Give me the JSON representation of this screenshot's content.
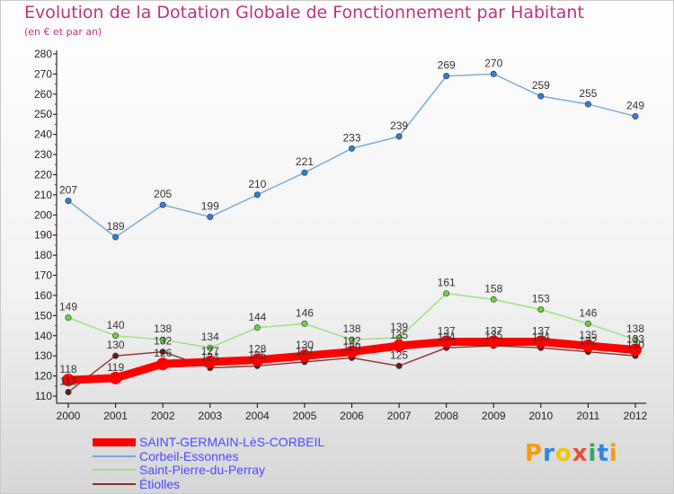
{
  "chart_data": {
    "type": "line",
    "title": "Evolution de la Dotation Globale de Fonctionnement par Habitant",
    "subtitle": "(en € et par an)",
    "x": [
      "2000",
      "2001",
      "2002",
      "2003",
      "2004",
      "2005",
      "2006",
      "2007",
      "2008",
      "2009",
      "2010",
      "2011",
      "2012"
    ],
    "ylim": [
      110,
      280
    ],
    "yticks": [
      110,
      120,
      130,
      140,
      150,
      160,
      170,
      180,
      190,
      200,
      210,
      220,
      230,
      240,
      250,
      260,
      270,
      280
    ],
    "grid": false,
    "legend_position": "bottom-left",
    "series": [
      {
        "name": "SAINT-GERMAIN-LèS-CORBEIL",
        "color": "#ff0000",
        "emphasis": true,
        "values": [
          118,
          119,
          126,
          127,
          128,
          130,
          132,
          135,
          137,
          137,
          137,
          135,
          133
        ],
        "labels": [
          "118",
          "119",
          "126",
          "127",
          "128",
          "130",
          "132",
          "135",
          "137",
          "137",
          "137",
          "135",
          "133"
        ]
      },
      {
        "name": "Corbeil-Essonnes",
        "color": "#6fa7da",
        "marker_color": "#2f7fd4",
        "values": [
          207,
          189,
          205,
          199,
          210,
          221,
          233,
          239,
          269,
          270,
          259,
          255,
          249
        ],
        "labels": [
          "207",
          "189",
          "205",
          "199",
          "210",
          "221",
          "233",
          "239",
          "269",
          "270",
          "259",
          "255",
          "249"
        ]
      },
      {
        "name": "Saint-Pierre-du-Perray",
        "color": "#99e07a",
        "marker_color": "#6ad33c",
        "values": [
          149,
          140,
          138,
          134,
          144,
          146,
          138,
          139,
          161,
          158,
          153,
          146,
          138
        ],
        "labels": [
          "149",
          "140",
          "138",
          "134",
          "144",
          "146",
          "138",
          "139",
          "161",
          "158",
          "153",
          "146",
          "138"
        ]
      },
      {
        "name": "Étiolles",
        "color": "#8b2f2f",
        "marker_color": "#6b1a1a",
        "values": [
          112,
          130,
          132,
          124,
          125,
          127,
          129,
          125,
          134,
          135,
          134,
          132,
          130
        ],
        "labels": [
          "112",
          "130",
          "132",
          "124",
          "125",
          "127",
          "129",
          "125",
          "134",
          "135",
          "134",
          "132",
          "130"
        ]
      }
    ]
  },
  "logo": {
    "text": "Proxiti",
    "letter_colors": [
      "#f39c12",
      "#2e86de",
      "#f1c40f",
      "#e74c3c",
      "#27ae60",
      "#2e86de",
      "#f39c12"
    ]
  }
}
